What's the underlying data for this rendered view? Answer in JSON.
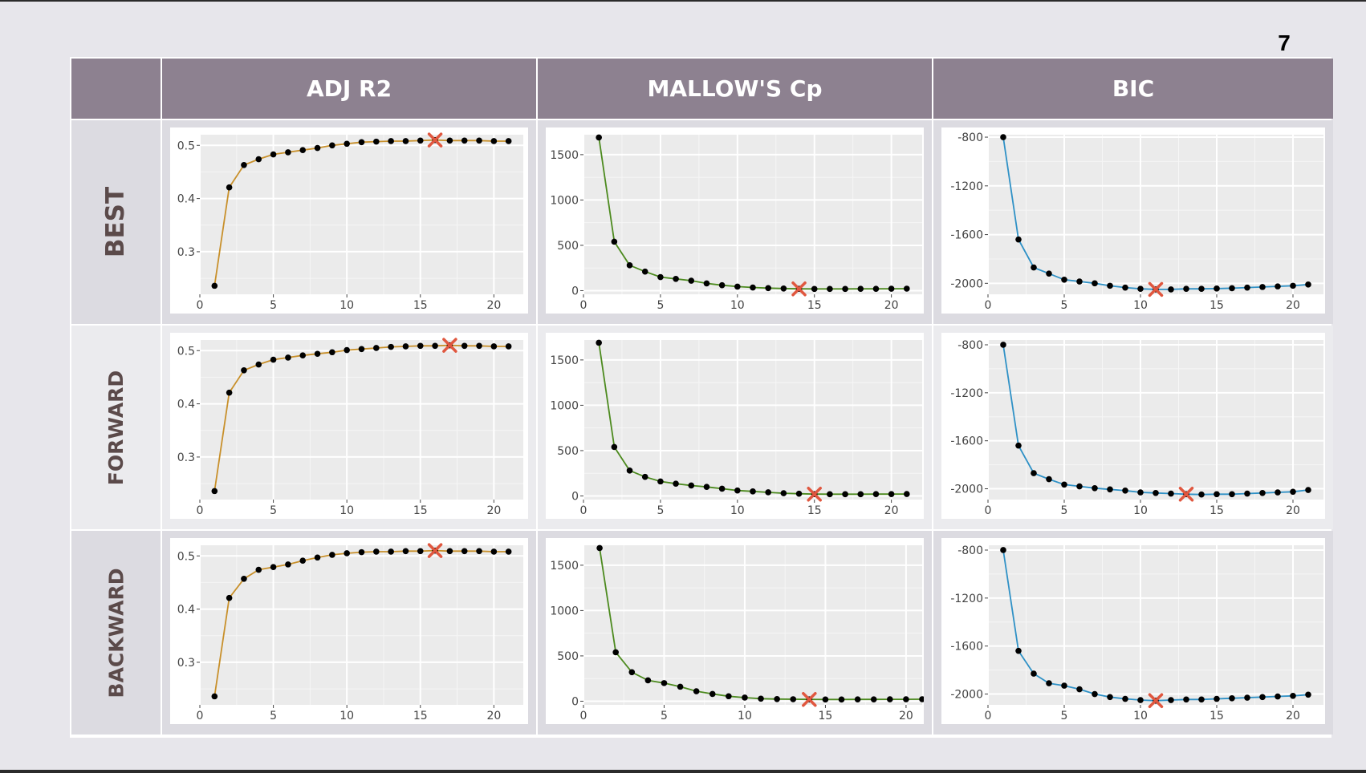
{
  "page": {
    "number": "7"
  },
  "columns": [
    {
      "key": "adjr2",
      "label": "ADJ R2"
    },
    {
      "key": "cp",
      "label": "MALLOW'S Cp"
    },
    {
      "key": "bic",
      "label": "BIC"
    }
  ],
  "rows": [
    {
      "key": "best",
      "label": "BEST"
    },
    {
      "key": "forward",
      "label": "FORWARD"
    },
    {
      "key": "backward",
      "label": "BACKWARD"
    }
  ],
  "colors": {
    "adjr2": "#c8902b",
    "cp": "#4c8a1e",
    "bic": "#2f91c6",
    "marker": "#e0573f",
    "header_bg": "#8d8190",
    "row_label": "#5b4a4a"
  },
  "chart_data": [
    {
      "type": "line",
      "name": "best-adjr2",
      "xlim": [
        0,
        22
      ],
      "ylim": [
        0.22,
        0.52
      ],
      "xticks": [
        0,
        5,
        10,
        15,
        20
      ],
      "yticks": [
        0.3,
        0.4,
        0.5
      ],
      "ytick_labels": [
        "0.3",
        "0.4",
        "0.5"
      ],
      "x": [
        1,
        2,
        3,
        4,
        5,
        6,
        7,
        8,
        9,
        10,
        11,
        12,
        13,
        14,
        15,
        16,
        17,
        18,
        19,
        20,
        21
      ],
      "y": [
        0.236,
        0.421,
        0.463,
        0.474,
        0.483,
        0.487,
        0.491,
        0.495,
        0.5,
        0.503,
        0.506,
        0.507,
        0.508,
        0.508,
        0.509,
        0.51,
        0.509,
        0.509,
        0.509,
        0.508,
        0.508
      ],
      "highlight": {
        "x": 16,
        "y": 0.51
      }
    },
    {
      "type": "line",
      "name": "best-cp",
      "xlim": [
        0,
        22
      ],
      "ylim": [
        -40,
        1720
      ],
      "xticks": [
        0,
        5,
        10,
        15,
        20
      ],
      "yticks": [
        0,
        500,
        1000,
        1500
      ],
      "ytick_labels": [
        "0",
        "500",
        "1000",
        "1500"
      ],
      "x": [
        1,
        2,
        3,
        4,
        5,
        6,
        7,
        8,
        9,
        10,
        11,
        12,
        13,
        14,
        15,
        16,
        17,
        18,
        19,
        20,
        21
      ],
      "y": [
        1690,
        540,
        280,
        210,
        150,
        130,
        110,
        80,
        60,
        45,
        35,
        28,
        24,
        20,
        19,
        19,
        19,
        20,
        20,
        21,
        22
      ],
      "highlight": {
        "x": 14,
        "y": 20
      }
    },
    {
      "type": "line",
      "name": "best-bic",
      "xlim": [
        0,
        22
      ],
      "ylim": [
        -2090,
        -780
      ],
      "xticks": [
        0,
        5,
        10,
        15,
        20
      ],
      "yticks": [
        -2000,
        -1600,
        -1200,
        -800
      ],
      "ytick_labels": [
        "-2000",
        "-1600",
        "-1200",
        "-800"
      ],
      "x": [
        1,
        2,
        3,
        4,
        5,
        6,
        7,
        8,
        9,
        10,
        11,
        12,
        13,
        14,
        15,
        16,
        17,
        18,
        19,
        20,
        21
      ],
      "y": [
        -800,
        -1640,
        -1870,
        -1920,
        -1970,
        -1985,
        -2000,
        -2020,
        -2035,
        -2045,
        -2050,
        -2050,
        -2045,
        -2045,
        -2043,
        -2040,
        -2035,
        -2030,
        -2025,
        -2020,
        -2010
      ],
      "highlight": {
        "x": 11,
        "y": -2050
      }
    },
    {
      "type": "line",
      "name": "forward-adjr2",
      "xlim": [
        0,
        22
      ],
      "ylim": [
        0.22,
        0.52
      ],
      "xticks": [
        0,
        5,
        10,
        15,
        20
      ],
      "yticks": [
        0.3,
        0.4,
        0.5
      ],
      "ytick_labels": [
        "0.3",
        "0.4",
        "0.5"
      ],
      "x": [
        1,
        2,
        3,
        4,
        5,
        6,
        7,
        8,
        9,
        10,
        11,
        12,
        13,
        14,
        15,
        16,
        17,
        18,
        19,
        20,
        21
      ],
      "y": [
        0.236,
        0.421,
        0.463,
        0.474,
        0.483,
        0.487,
        0.491,
        0.494,
        0.497,
        0.501,
        0.503,
        0.505,
        0.507,
        0.508,
        0.509,
        0.509,
        0.51,
        0.509,
        0.509,
        0.508,
        0.508
      ],
      "highlight": {
        "x": 17,
        "y": 0.51
      }
    },
    {
      "type": "line",
      "name": "forward-cp",
      "xlim": [
        0,
        22
      ],
      "ylim": [
        -40,
        1720
      ],
      "xticks": [
        0,
        5,
        10,
        15,
        20
      ],
      "yticks": [
        0,
        500,
        1000,
        1500
      ],
      "ytick_labels": [
        "0",
        "500",
        "1000",
        "1500"
      ],
      "x": [
        1,
        2,
        3,
        4,
        5,
        6,
        7,
        8,
        9,
        10,
        11,
        12,
        13,
        14,
        15,
        16,
        17,
        18,
        19,
        20,
        21
      ],
      "y": [
        1690,
        540,
        280,
        210,
        160,
        135,
        115,
        100,
        80,
        60,
        50,
        40,
        30,
        25,
        20,
        19,
        19,
        19,
        20,
        20,
        21
      ],
      "highlight": {
        "x": 15,
        "y": 20
      }
    },
    {
      "type": "line",
      "name": "forward-bic",
      "xlim": [
        0,
        22
      ],
      "ylim": [
        -2090,
        -760
      ],
      "xticks": [
        0,
        5,
        10,
        15,
        20
      ],
      "yticks": [
        -2000,
        -1600,
        -1200,
        -800
      ],
      "ytick_labels": [
        "-2000",
        "-1600",
        "-1200",
        "-800"
      ],
      "x": [
        1,
        2,
        3,
        4,
        5,
        6,
        7,
        8,
        9,
        10,
        11,
        12,
        13,
        14,
        15,
        16,
        17,
        18,
        19,
        20,
        21
      ],
      "y": [
        -800,
        -1640,
        -1870,
        -1920,
        -1965,
        -1980,
        -1995,
        -2005,
        -2015,
        -2030,
        -2035,
        -2040,
        -2045,
        -2048,
        -2045,
        -2045,
        -2040,
        -2035,
        -2030,
        -2025,
        -2010
      ],
      "highlight": {
        "x": 13,
        "y": -2045
      }
    },
    {
      "type": "line",
      "name": "backward-adjr2",
      "xlim": [
        0,
        22
      ],
      "ylim": [
        0.22,
        0.52
      ],
      "xticks": [
        0,
        5,
        10,
        15,
        20
      ],
      "yticks": [
        0.3,
        0.4,
        0.5
      ],
      "ytick_labels": [
        "0.3",
        "0.4",
        "0.5"
      ],
      "x": [
        1,
        2,
        3,
        4,
        5,
        6,
        7,
        8,
        9,
        10,
        11,
        12,
        13,
        14,
        15,
        16,
        17,
        18,
        19,
        20,
        21
      ],
      "y": [
        0.236,
        0.421,
        0.457,
        0.474,
        0.479,
        0.484,
        0.491,
        0.497,
        0.502,
        0.505,
        0.507,
        0.508,
        0.508,
        0.509,
        0.509,
        0.51,
        0.509,
        0.509,
        0.509,
        0.508,
        0.508
      ],
      "highlight": {
        "x": 16,
        "y": 0.51
      }
    },
    {
      "type": "line",
      "name": "backward-cp",
      "xlim": [
        0,
        21
      ],
      "ylim": [
        -40,
        1720
      ],
      "xticks": [
        0,
        5,
        10,
        15,
        20
      ],
      "yticks": [
        0,
        500,
        1000,
        1500
      ],
      "ytick_labels": [
        "0",
        "500",
        "1000",
        "1500"
      ],
      "x": [
        1,
        2,
        3,
        4,
        5,
        6,
        7,
        8,
        9,
        10,
        11,
        12,
        13,
        14,
        15,
        16,
        17,
        18,
        19,
        20,
        21
      ],
      "y": [
        1690,
        540,
        320,
        230,
        200,
        160,
        110,
        80,
        55,
        40,
        28,
        24,
        22,
        20,
        19,
        19,
        20,
        20,
        21,
        21,
        22
      ],
      "highlight": {
        "x": 14,
        "y": 20
      }
    },
    {
      "type": "line",
      "name": "backward-bic",
      "xlim": [
        0,
        22
      ],
      "ylim": [
        -2090,
        -760
      ],
      "xticks": [
        0,
        5,
        10,
        15,
        20
      ],
      "yticks": [
        -2000,
        -1600,
        -1200,
        -800
      ],
      "ytick_labels": [
        "-2000",
        "-1600",
        "-1200",
        "-800"
      ],
      "x": [
        1,
        2,
        3,
        4,
        5,
        6,
        7,
        8,
        9,
        10,
        11,
        12,
        13,
        14,
        15,
        16,
        17,
        18,
        19,
        20,
        21
      ],
      "y": [
        -800,
        -1640,
        -1830,
        -1910,
        -1930,
        -1960,
        -2000,
        -2025,
        -2040,
        -2050,
        -2055,
        -2050,
        -2045,
        -2045,
        -2040,
        -2035,
        -2030,
        -2025,
        -2020,
        -2015,
        -2005
      ],
      "highlight": {
        "x": 11,
        "y": -2055
      }
    }
  ]
}
